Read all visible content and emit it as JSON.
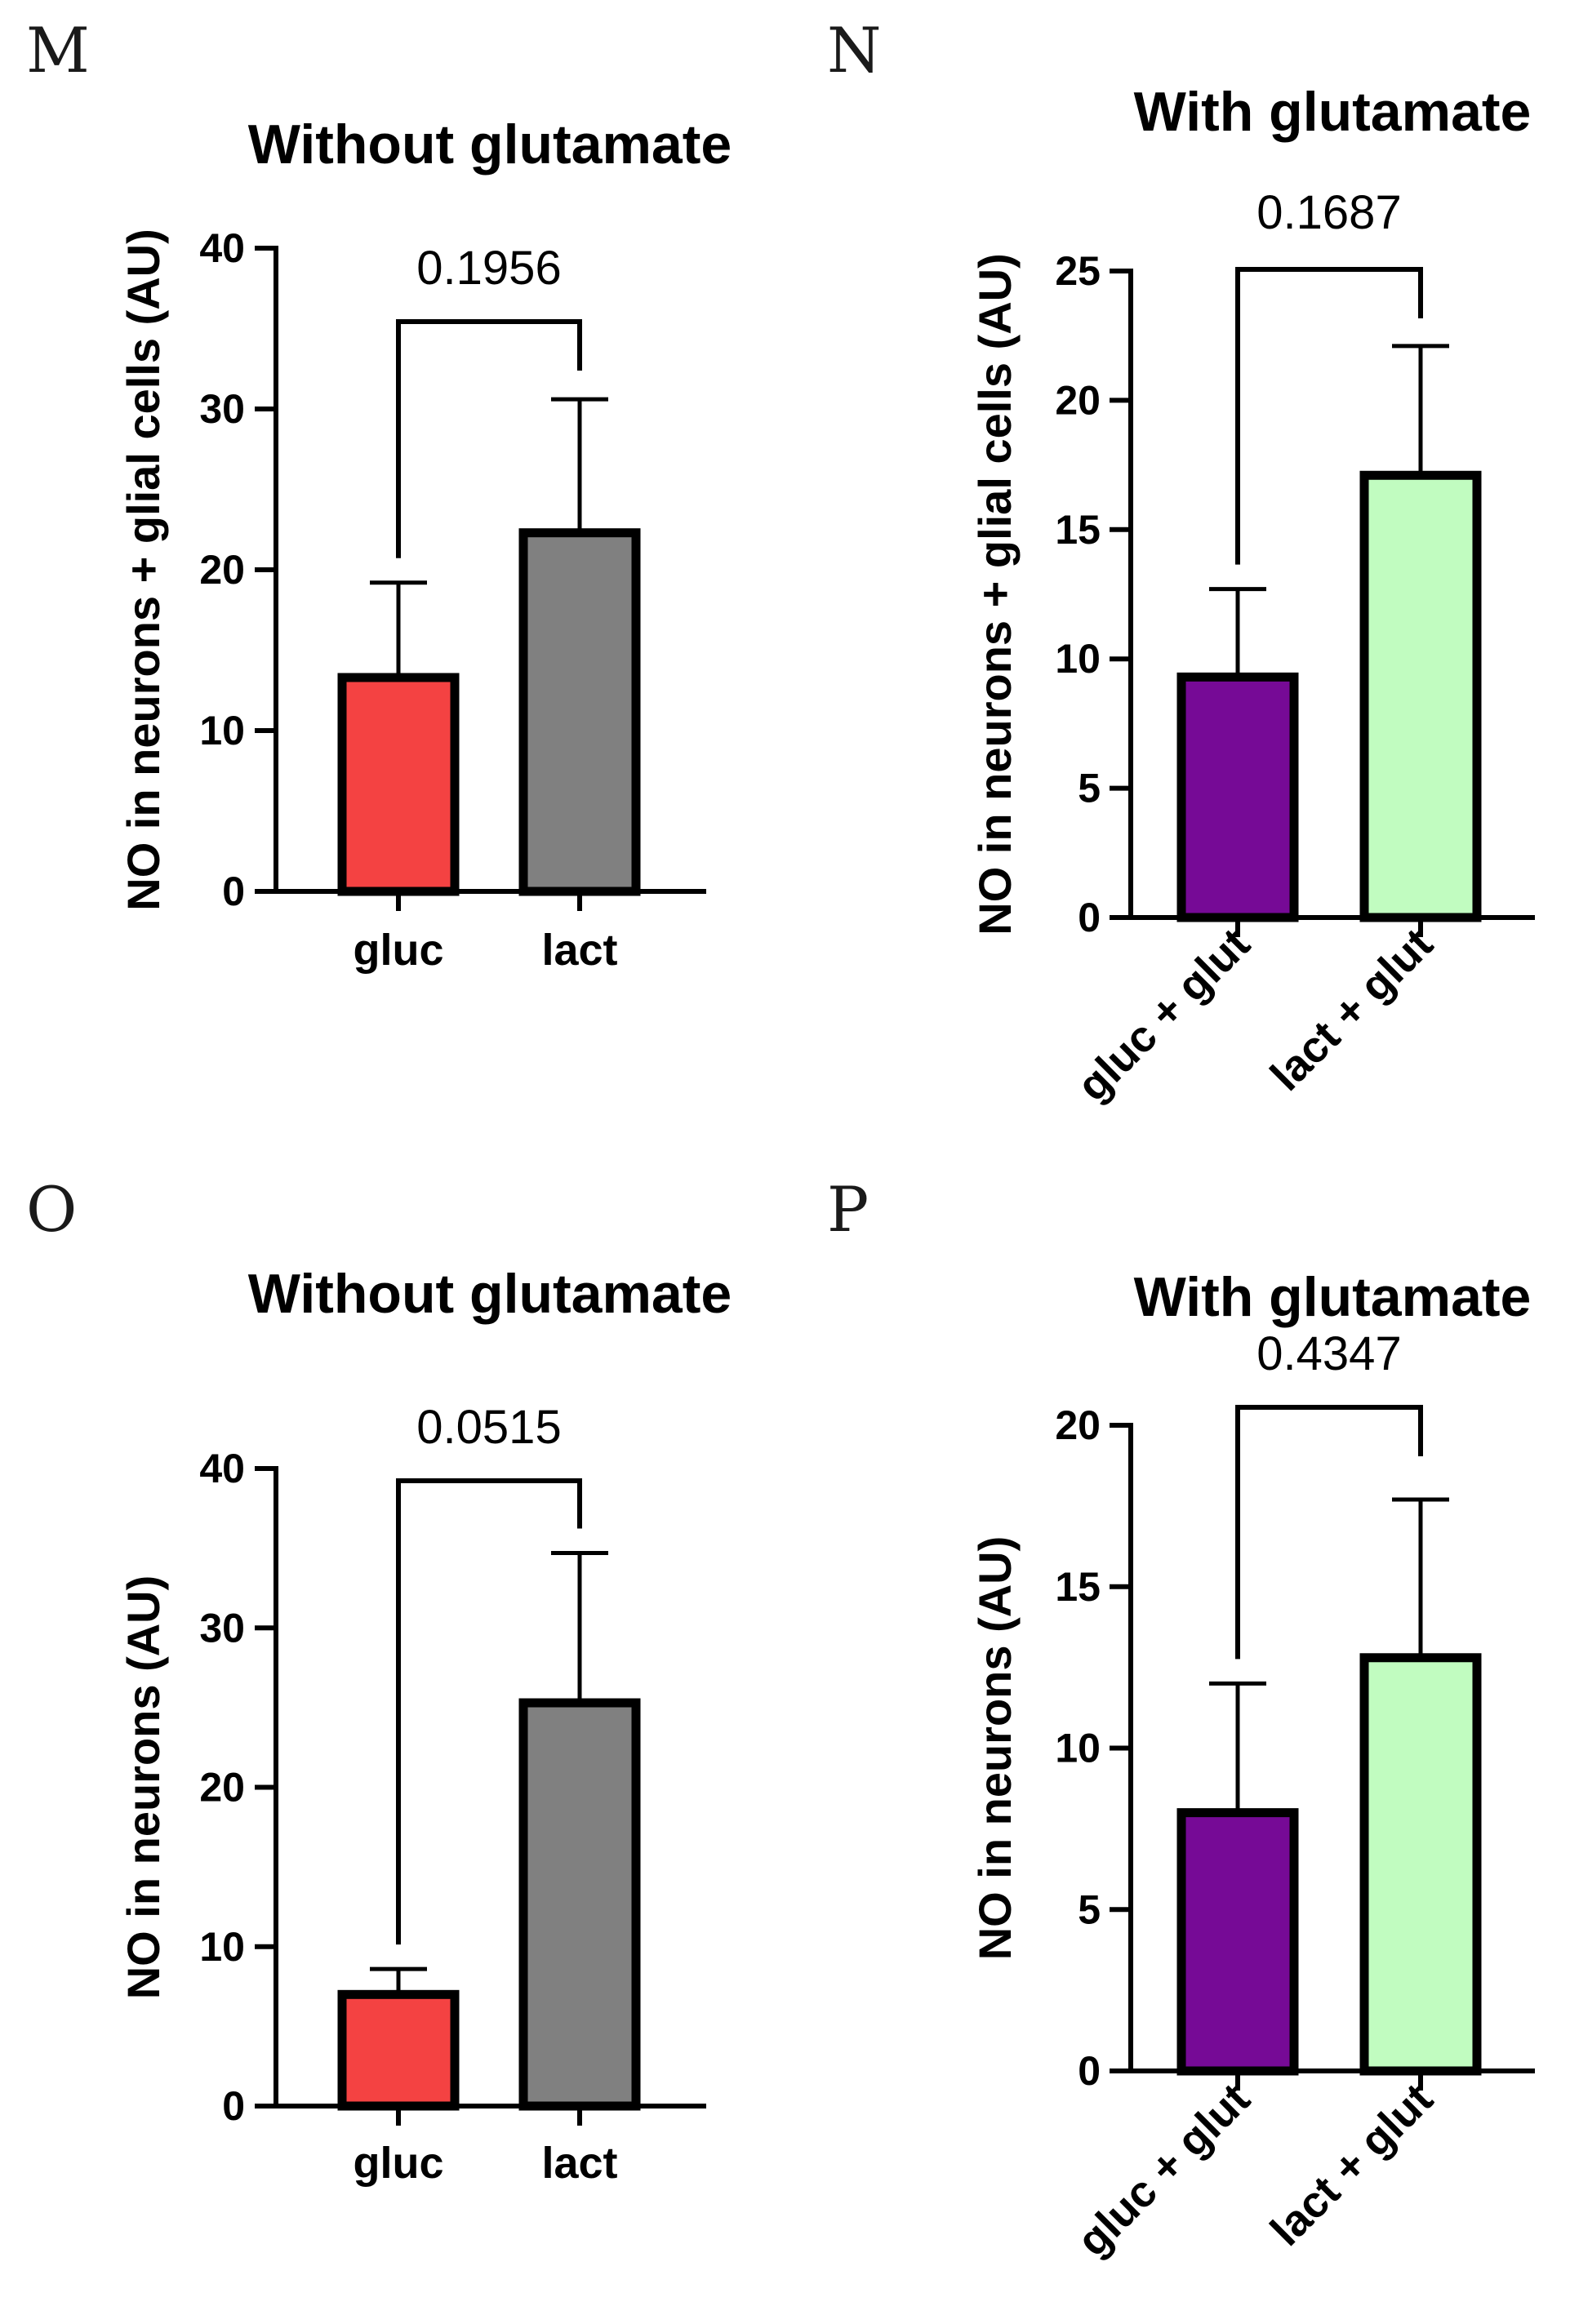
{
  "colors": {
    "gluc": "#f44242",
    "lact": "#808080",
    "gluc_glut": "#760a96",
    "lact_glut": "#c1fcc0",
    "axis": "#000000"
  },
  "chart_data": [
    {
      "panel": "M",
      "type": "bar",
      "title": "Without glutamate",
      "ylabel": "NO in neurons + glial cells (AU)",
      "xlabel": "",
      "categories": [
        "gluc",
        "lact"
      ],
      "values": [
        13.3,
        22.3
      ],
      "error_upper": [
        19.2,
        30.6
      ],
      "ylim": [
        0,
        40
      ],
      "yticks": [
        0,
        10,
        20,
        30,
        40
      ],
      "p_value": "0.1956",
      "grid": false
    },
    {
      "panel": "N",
      "type": "bar",
      "title": "With glutamate",
      "ylabel": "NO in neurons + glial cells (AU)",
      "xlabel": "",
      "categories": [
        "gluc + glut",
        "lact + glut"
      ],
      "values": [
        9.3,
        17.1
      ],
      "error_upper": [
        12.7,
        22.1
      ],
      "ylim": [
        0,
        25
      ],
      "yticks": [
        0,
        5,
        10,
        15,
        20,
        25
      ],
      "p_value": "0.1687",
      "grid": false
    },
    {
      "panel": "O",
      "type": "bar",
      "title": "Without glutamate",
      "ylabel": "NO in neurons (AU)",
      "xlabel": "",
      "categories": [
        "gluc",
        "lact"
      ],
      "values": [
        7.0,
        25.3
      ],
      "error_upper": [
        8.6,
        34.7
      ],
      "ylim": [
        0,
        40
      ],
      "yticks": [
        0,
        10,
        20,
        30,
        40
      ],
      "p_value": "0.0515",
      "grid": false
    },
    {
      "panel": "P",
      "type": "bar",
      "title": "With glutamate",
      "ylabel": "NO in neurons (AU)",
      "xlabel": "",
      "categories": [
        "gluc + glut",
        "lact + glut"
      ],
      "values": [
        8.0,
        12.8
      ],
      "error_upper": [
        12.0,
        17.7
      ],
      "ylim": [
        0,
        20
      ],
      "yticks": [
        0,
        5,
        10,
        15,
        20
      ],
      "p_value": "0.4347",
      "grid": false
    }
  ]
}
